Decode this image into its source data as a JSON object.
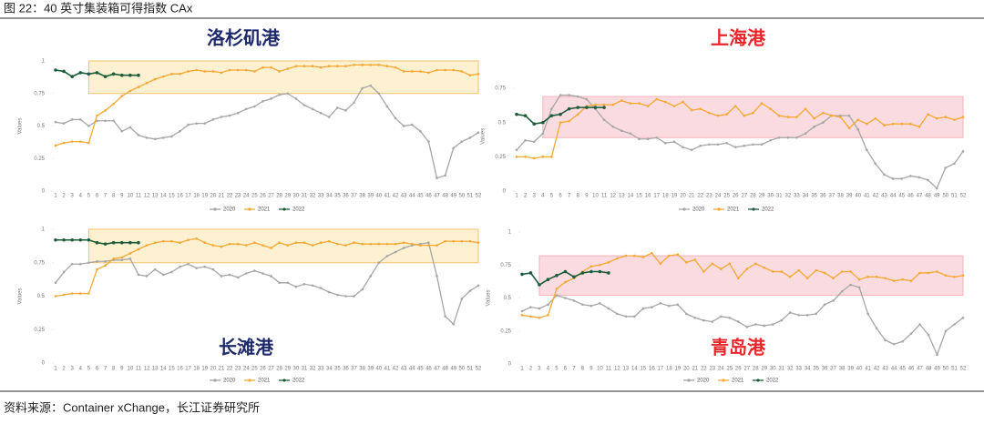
{
  "header": {
    "caption": "图 22：40 英寸集装箱可得指数 CAx"
  },
  "footer": {
    "source": "资料来源：Container xChange，长江证券研究所"
  },
  "chart_data": [
    {
      "type": "line",
      "title": "洛杉矶港",
      "title_color": "#1f2a6b",
      "ylabel": "Values",
      "categories": [
        1,
        2,
        3,
        4,
        5,
        6,
        7,
        8,
        9,
        10,
        11,
        12,
        13,
        14,
        15,
        16,
        17,
        18,
        19,
        20,
        21,
        22,
        23,
        24,
        25,
        26,
        27,
        28,
        29,
        30,
        31,
        32,
        33,
        34,
        35,
        36,
        37,
        38,
        39,
        40,
        41,
        42,
        43,
        44,
        45,
        46,
        47,
        48,
        49,
        50,
        51,
        52
      ],
      "ylim": [
        0,
        1
      ],
      "yticks": [
        0,
        0.25,
        0.5,
        0.75,
        1
      ],
      "band": {
        "xlim": [
          5,
          52
        ],
        "ylim": [
          0.75,
          1
        ],
        "color": "#fdf1d2",
        "edge": "#f2c36f"
      },
      "series": [
        {
          "name": "2020",
          "color": "#a6a6a6",
          "values": [
            0.53,
            0.52,
            0.55,
            0.55,
            0.5,
            0.54,
            0.54,
            0.54,
            0.46,
            0.49,
            0.43,
            0.41,
            0.4,
            0.41,
            0.42,
            0.46,
            0.51,
            0.52,
            0.52,
            0.55,
            0.57,
            0.58,
            0.6,
            0.63,
            0.65,
            0.69,
            0.71,
            0.74,
            0.75,
            0.71,
            0.66,
            0.63,
            0.6,
            0.57,
            0.64,
            0.62,
            0.68,
            0.79,
            0.81,
            0.75,
            0.65,
            0.56,
            0.5,
            0.51,
            0.46,
            0.38,
            0.1,
            0.12,
            0.33,
            0.38,
            0.41,
            0.45
          ]
        },
        {
          "name": "2021",
          "color": "#f5a833",
          "values": [
            0.35,
            0.37,
            0.38,
            0.38,
            0.37,
            0.58,
            0.62,
            0.67,
            0.73,
            0.77,
            0.8,
            0.83,
            0.86,
            0.88,
            0.9,
            0.9,
            0.92,
            0.93,
            0.92,
            0.92,
            0.91,
            0.93,
            0.93,
            0.93,
            0.92,
            0.95,
            0.95,
            0.92,
            0.94,
            0.96,
            0.96,
            0.96,
            0.95,
            0.96,
            0.96,
            0.96,
            0.97,
            0.97,
            0.97,
            0.97,
            0.96,
            0.95,
            0.92,
            0.92,
            0.92,
            0.91,
            0.93,
            0.93,
            0.93,
            0.92,
            0.89,
            0.9
          ]
        },
        {
          "name": "2022",
          "color": "#1d5c3a",
          "values": [
            0.93,
            0.92,
            0.88,
            0.91,
            0.9,
            0.91,
            0.88,
            0.9,
            0.89,
            0.89,
            0.89,
            null,
            null,
            null,
            null,
            null,
            null,
            null,
            null,
            null,
            null,
            null,
            null,
            null,
            null,
            null,
            null,
            null,
            null,
            null,
            null,
            null,
            null,
            null,
            null,
            null,
            null,
            null,
            null,
            null,
            null,
            null,
            null,
            null,
            null,
            null,
            null,
            null,
            null,
            null,
            null,
            null
          ]
        }
      ]
    },
    {
      "type": "line",
      "title": "上海港",
      "title_color": "#e8262a",
      "ylabel": "Values",
      "categories": [
        1,
        2,
        3,
        4,
        5,
        6,
        7,
        8,
        9,
        10,
        11,
        12,
        13,
        14,
        15,
        16,
        17,
        18,
        19,
        20,
        21,
        22,
        23,
        24,
        25,
        26,
        27,
        28,
        29,
        30,
        31,
        32,
        33,
        34,
        35,
        36,
        37,
        38,
        39,
        40,
        41,
        42,
        43,
        44,
        45,
        46,
        47,
        48,
        49,
        50,
        51,
        52
      ],
      "ylim": [
        0,
        0.8
      ],
      "yticks": [
        0,
        0.25,
        0.5,
        0.75
      ],
      "band": {
        "xlim": [
          4,
          52
        ],
        "ylim": [
          0.39,
          0.69
        ],
        "color": "#fadbdf",
        "edge": "#f2b3bb"
      },
      "series": [
        {
          "name": "2020",
          "color": "#a6a6a6",
          "values": [
            0.3,
            0.37,
            0.36,
            0.42,
            0.6,
            0.7,
            0.7,
            0.69,
            0.67,
            0.6,
            0.52,
            0.47,
            0.44,
            0.42,
            0.38,
            0.38,
            0.39,
            0.35,
            0.36,
            0.32,
            0.3,
            0.33,
            0.34,
            0.34,
            0.35,
            0.32,
            0.33,
            0.34,
            0.34,
            0.37,
            0.39,
            0.39,
            0.39,
            0.42,
            0.47,
            0.5,
            0.55,
            0.55,
            0.55,
            0.45,
            0.3,
            0.2,
            0.12,
            0.09,
            0.09,
            0.11,
            0.1,
            0.08,
            0.02,
            0.17,
            0.2,
            0.29
          ]
        },
        {
          "name": "2021",
          "color": "#f5a833",
          "values": [
            0.25,
            0.25,
            0.24,
            0.25,
            0.25,
            0.5,
            0.51,
            0.56,
            0.62,
            0.63,
            0.63,
            0.63,
            0.66,
            0.64,
            0.64,
            0.62,
            0.67,
            0.65,
            0.62,
            0.65,
            0.59,
            0.6,
            0.57,
            0.55,
            0.56,
            0.62,
            0.55,
            0.57,
            0.64,
            0.6,
            0.55,
            0.54,
            0.54,
            0.6,
            0.53,
            0.57,
            0.55,
            0.54,
            0.46,
            0.52,
            0.49,
            0.53,
            0.48,
            0.49,
            0.49,
            0.49,
            0.47,
            0.56,
            0.53,
            0.54,
            0.52,
            0.54
          ]
        },
        {
          "name": "2022",
          "color": "#1d5c3a",
          "values": [
            0.56,
            0.55,
            0.49,
            0.5,
            0.55,
            0.56,
            0.6,
            0.61,
            0.61,
            0.61,
            0.61,
            null,
            null,
            null,
            null,
            null,
            null,
            null,
            null,
            null,
            null,
            null,
            null,
            null,
            null,
            null,
            null,
            null,
            null,
            null,
            null,
            null,
            null,
            null,
            null,
            null,
            null,
            null,
            null,
            null,
            null,
            null,
            null,
            null,
            null,
            null,
            null,
            null,
            null,
            null,
            null,
            null
          ]
        }
      ]
    },
    {
      "type": "line",
      "title": "长滩港",
      "title_color": "#1f2a6b",
      "ylabel": "Values",
      "categories": [
        1,
        2,
        3,
        4,
        5,
        6,
        7,
        8,
        9,
        10,
        11,
        12,
        13,
        14,
        15,
        16,
        17,
        18,
        19,
        20,
        21,
        22,
        23,
        24,
        25,
        26,
        27,
        28,
        29,
        30,
        31,
        32,
        33,
        34,
        35,
        36,
        37,
        38,
        39,
        40,
        41,
        42,
        43,
        44,
        45,
        46,
        47,
        48,
        49,
        50,
        51,
        52
      ],
      "ylim": [
        0,
        1
      ],
      "yticks": [
        0,
        0.25,
        0.5,
        0.75,
        1
      ],
      "band": {
        "xlim": [
          5,
          52
        ],
        "ylim": [
          0.75,
          1
        ],
        "color": "#fdf1d2",
        "edge": "#f2c36f"
      },
      "series": [
        {
          "name": "2020",
          "color": "#a6a6a6",
          "values": [
            0.6,
            0.68,
            0.74,
            0.74,
            0.75,
            0.76,
            0.76,
            0.77,
            0.77,
            0.78,
            0.66,
            0.65,
            0.7,
            0.66,
            0.68,
            0.72,
            0.74,
            0.71,
            0.72,
            0.7,
            0.65,
            0.66,
            0.64,
            0.67,
            0.69,
            0.67,
            0.65,
            0.6,
            0.6,
            0.57,
            0.59,
            0.58,
            0.56,
            0.53,
            0.51,
            0.5,
            0.5,
            0.55,
            0.65,
            0.75,
            0.8,
            0.83,
            0.86,
            0.88,
            0.89,
            0.9,
            0.65,
            0.35,
            0.29,
            0.48,
            0.54,
            0.58
          ]
        },
        {
          "name": "2021",
          "color": "#f5a833",
          "values": [
            0.5,
            0.51,
            0.52,
            0.52,
            0.52,
            0.7,
            0.73,
            0.78,
            0.79,
            0.82,
            0.85,
            0.88,
            0.9,
            0.91,
            0.91,
            0.9,
            0.92,
            0.93,
            0.9,
            0.88,
            0.87,
            0.89,
            0.89,
            0.88,
            0.9,
            0.88,
            0.86,
            0.9,
            0.88,
            0.9,
            0.9,
            0.88,
            0.9,
            0.91,
            0.89,
            0.88,
            0.9,
            0.89,
            0.89,
            0.89,
            0.89,
            0.89,
            0.9,
            0.89,
            0.88,
            0.88,
            0.88,
            0.91,
            0.91,
            0.91,
            0.91,
            0.9
          ]
        },
        {
          "name": "2022",
          "color": "#1d5c3a",
          "values": [
            0.92,
            0.92,
            0.92,
            0.92,
            0.92,
            0.9,
            0.89,
            0.9,
            0.9,
            0.9,
            0.9,
            null,
            null,
            null,
            null,
            null,
            null,
            null,
            null,
            null,
            null,
            null,
            null,
            null,
            null,
            null,
            null,
            null,
            null,
            null,
            null,
            null,
            null,
            null,
            null,
            null,
            null,
            null,
            null,
            null,
            null,
            null,
            null,
            null,
            null,
            null,
            null,
            null,
            null,
            null,
            null,
            null
          ]
        }
      ]
    },
    {
      "type": "line",
      "title": "青岛港",
      "title_color": "#e8262a",
      "ylabel": "Values",
      "categories": [
        1,
        2,
        3,
        4,
        5,
        6,
        7,
        8,
        9,
        10,
        11,
        12,
        13,
        14,
        15,
        16,
        17,
        18,
        19,
        20,
        21,
        22,
        23,
        24,
        25,
        26,
        27,
        28,
        29,
        30,
        31,
        32,
        33,
        34,
        35,
        36,
        37,
        38,
        39,
        40,
        41,
        42,
        43,
        44,
        45,
        46,
        47,
        48,
        49,
        50,
        51,
        52
      ],
      "ylim": [
        0,
        1
      ],
      "yticks": [
        0,
        0.25,
        0.5,
        0.75,
        1
      ],
      "band": {
        "xlim": [
          3,
          52
        ],
        "ylim": [
          0.52,
          0.82
        ],
        "color": "#fadbdf",
        "edge": "#f2b3bb"
      },
      "series": [
        {
          "name": "2020",
          "color": "#a6a6a6",
          "values": [
            0.4,
            0.43,
            0.42,
            0.45,
            0.52,
            0.5,
            0.48,
            0.45,
            0.44,
            0.46,
            0.42,
            0.38,
            0.36,
            0.36,
            0.42,
            0.43,
            0.46,
            0.44,
            0.45,
            0.38,
            0.35,
            0.33,
            0.32,
            0.36,
            0.35,
            0.32,
            0.28,
            0.3,
            0.29,
            0.3,
            0.33,
            0.39,
            0.37,
            0.37,
            0.38,
            0.45,
            0.48,
            0.55,
            0.6,
            0.58,
            0.38,
            0.27,
            0.18,
            0.15,
            0.17,
            0.23,
            0.3,
            0.22,
            0.07,
            0.25,
            0.3,
            0.35
          ]
        },
        {
          "name": "2021",
          "color": "#f5a833",
          "values": [
            0.37,
            0.36,
            0.35,
            0.37,
            0.57,
            0.62,
            0.65,
            0.7,
            0.74,
            0.75,
            0.77,
            0.8,
            0.82,
            0.82,
            0.81,
            0.84,
            0.76,
            0.82,
            0.83,
            0.77,
            0.79,
            0.7,
            0.76,
            0.72,
            0.76,
            0.65,
            0.72,
            0.76,
            0.73,
            0.7,
            0.7,
            0.66,
            0.71,
            0.65,
            0.71,
            0.69,
            0.65,
            0.7,
            0.7,
            0.64,
            0.66,
            0.66,
            0.65,
            0.63,
            0.64,
            0.63,
            0.69,
            0.69,
            0.7,
            0.67,
            0.66,
            0.67
          ]
        },
        {
          "name": "2022",
          "color": "#1d5c3a",
          "values": [
            0.68,
            0.69,
            0.6,
            0.64,
            0.67,
            0.7,
            0.66,
            0.69,
            0.7,
            0.7,
            0.69,
            null,
            null,
            null,
            null,
            null,
            null,
            null,
            null,
            null,
            null,
            null,
            null,
            null,
            null,
            null,
            null,
            null,
            null,
            null,
            null,
            null,
            null,
            null,
            null,
            null,
            null,
            null,
            null,
            null,
            null,
            null,
            null,
            null,
            null,
            null,
            null,
            null,
            null,
            null,
            null,
            null
          ]
        }
      ]
    }
  ]
}
